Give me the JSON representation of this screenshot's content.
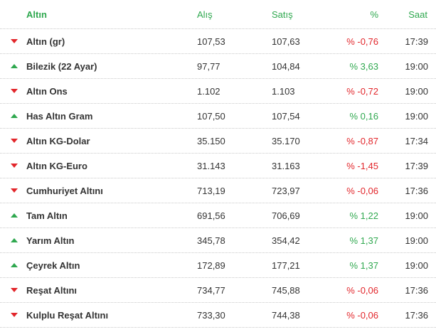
{
  "colors": {
    "accent_green": "#2fa84f",
    "down_red": "#e2262b",
    "row_divider": "#c9c9c9"
  },
  "header": {
    "name": "Altın",
    "buy": "Alış",
    "sell": "Satış",
    "change": "%",
    "time": "Saat"
  },
  "rows": [
    {
      "trend": "down",
      "trend_icon": "down-arrow-icon",
      "name": "Altın (gr)",
      "buy": "107,53",
      "sell": "107,63",
      "change": "% -0,76",
      "time": "17:39"
    },
    {
      "trend": "up",
      "trend_icon": "up-arrow-icon",
      "name": "Bilezik (22 Ayar)",
      "buy": "97,77",
      "sell": "104,84",
      "change": "% 3,63",
      "time": "19:00"
    },
    {
      "trend": "down",
      "trend_icon": "down-arrow-icon",
      "name": "Altın Ons",
      "buy": "1.102",
      "sell": "1.103",
      "change": "% -0,72",
      "time": "19:00"
    },
    {
      "trend": "up",
      "trend_icon": "up-arrow-icon",
      "name": "Has Altın Gram",
      "buy": "107,50",
      "sell": "107,54",
      "change": "% 0,16",
      "time": "19:00"
    },
    {
      "trend": "down",
      "trend_icon": "down-arrow-icon",
      "name": "Altın KG-Dolar",
      "buy": "35.150",
      "sell": "35.170",
      "change": "% -0,87",
      "time": "17:34"
    },
    {
      "trend": "down",
      "trend_icon": "down-arrow-icon",
      "name": "Altın KG-Euro",
      "buy": "31.143",
      "sell": "31.163",
      "change": "% -1,45",
      "time": "17:39"
    },
    {
      "trend": "down",
      "trend_icon": "down-arrow-icon",
      "name": "Cumhuriyet Altını",
      "buy": "713,19",
      "sell": "723,97",
      "change": "% -0,06",
      "time": "17:36"
    },
    {
      "trend": "up",
      "trend_icon": "up-arrow-icon",
      "name": "Tam Altın",
      "buy": "691,56",
      "sell": "706,69",
      "change": "% 1,22",
      "time": "19:00"
    },
    {
      "trend": "up",
      "trend_icon": "up-arrow-icon",
      "name": "Yarım Altın",
      "buy": "345,78",
      "sell": "354,42",
      "change": "% 1,37",
      "time": "19:00"
    },
    {
      "trend": "up",
      "trend_icon": "up-arrow-icon",
      "name": "Çeyrek Altın",
      "buy": "172,89",
      "sell": "177,21",
      "change": "% 1,37",
      "time": "19:00"
    },
    {
      "trend": "down",
      "trend_icon": "down-arrow-icon",
      "name": "Reşat Altını",
      "buy": "734,77",
      "sell": "745,88",
      "change": "% -0,06",
      "time": "17:36"
    },
    {
      "trend": "down",
      "trend_icon": "down-arrow-icon",
      "name": "Kulplu Reşat Altını",
      "buy": "733,30",
      "sell": "744,38",
      "change": "% -0,06",
      "time": "17:36"
    }
  ]
}
